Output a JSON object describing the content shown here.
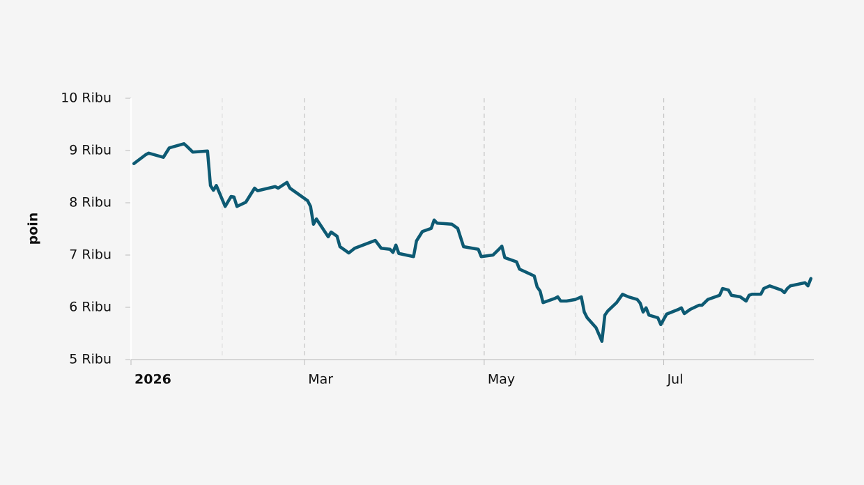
{
  "chart_data": {
    "type": "line",
    "y_label": "poin",
    "color": "#0d5a73",
    "x": [
      "2026-01-02",
      "2026-01-06",
      "2026-01-07",
      "2026-01-12",
      "2026-01-14",
      "2026-01-19",
      "2026-01-20",
      "2026-01-22",
      "2026-01-27",
      "2026-01-28",
      "2026-01-29",
      "2026-01-30",
      "2026-02-02",
      "2026-02-04",
      "2026-02-05",
      "2026-02-06",
      "2026-02-09",
      "2026-02-12",
      "2026-02-13",
      "2026-02-19",
      "2026-02-20",
      "2026-02-23",
      "2026-02-24",
      "2026-02-26",
      "2026-03-02",
      "2026-03-03",
      "2026-03-04",
      "2026-03-05",
      "2026-03-09",
      "2026-03-10",
      "2026-03-12",
      "2026-03-13",
      "2026-03-16",
      "2026-03-18",
      "2026-03-25",
      "2026-03-27",
      "2026-03-30",
      "2026-03-31",
      "2026-04-01",
      "2026-04-02",
      "2026-04-07",
      "2026-04-08",
      "2026-04-10",
      "2026-04-13",
      "2026-04-14",
      "2026-04-15",
      "2026-04-20",
      "2026-04-22",
      "2026-04-24",
      "2026-04-27",
      "2026-04-29",
      "2026-04-30",
      "2026-05-04",
      "2026-05-06",
      "2026-05-07",
      "2026-05-08",
      "2026-05-12",
      "2026-05-13",
      "2026-05-18",
      "2026-05-19",
      "2026-05-20",
      "2026-05-21",
      "2026-05-25",
      "2026-05-26",
      "2026-05-27",
      "2026-05-29",
      "2026-06-01",
      "2026-06-03",
      "2026-06-04",
      "2026-06-05",
      "2026-06-08",
      "2026-06-10",
      "2026-06-11",
      "2026-06-12",
      "2026-06-15",
      "2026-06-17",
      "2026-06-19",
      "2026-06-22",
      "2026-06-23",
      "2026-06-24",
      "2026-06-25",
      "2026-06-26",
      "2026-06-29",
      "2026-06-30",
      "2026-07-02",
      "2026-07-06",
      "2026-07-07",
      "2026-07-08",
      "2026-07-10",
      "2026-07-13",
      "2026-07-14",
      "2026-07-16",
      "2026-07-20",
      "2026-07-21",
      "2026-07-23",
      "2026-07-24",
      "2026-07-27",
      "2026-07-29",
      "2026-07-30",
      "2026-07-31",
      "2026-08-03",
      "2026-08-04",
      "2026-08-06",
      "2026-08-07",
      "2026-08-10",
      "2026-08-11",
      "2026-08-12",
      "2026-08-13",
      "2026-08-18",
      "2026-08-19",
      "2026-08-20"
    ],
    "values": [
      8750,
      8920,
      8950,
      8870,
      9050,
      9130,
      9080,
      8970,
      8990,
      8330,
      8240,
      8330,
      7930,
      8120,
      8110,
      7930,
      8010,
      8280,
      8230,
      8310,
      8280,
      8390,
      8280,
      8200,
      8040,
      7930,
      7590,
      7690,
      7350,
      7440,
      7360,
      7160,
      7040,
      7130,
      7280,
      7130,
      7110,
      7050,
      7190,
      7030,
      6970,
      7270,
      7450,
      7510,
      7670,
      7610,
      7590,
      7510,
      7160,
      7130,
      7110,
      6970,
      7000,
      7110,
      7170,
      6950,
      6870,
      6730,
      6600,
      6390,
      6310,
      6090,
      6170,
      6200,
      6120,
      6120,
      6150,
      6200,
      5910,
      5800,
      5610,
      5350,
      5850,
      5930,
      6090,
      6250,
      6200,
      6150,
      6080,
      5910,
      5990,
      5850,
      5800,
      5670,
      5870,
      5960,
      5990,
      5880,
      5960,
      6040,
      6040,
      6150,
      6230,
      6360,
      6330,
      6230,
      6200,
      6120,
      6230,
      6250,
      6250,
      6360,
      6410,
      6390,
      6330,
      6280,
      6360,
      6410,
      6470,
      6410,
      6550
    ],
    "xlim": [
      "2026-01-01",
      "2026-08-21"
    ],
    "xticks": [
      {
        "value": "2026-01-01",
        "label": "2026"
      },
      {
        "value": "2026-03-01",
        "label": "Mar"
      },
      {
        "value": "2026-05-01",
        "label": "May"
      },
      {
        "value": "2026-07-01",
        "label": "Jul"
      }
    ],
    "xminor": [
      "2026-02-01",
      "2026-04-01",
      "2026-06-01",
      "2026-08-01"
    ],
    "ylim": [
      5000,
      10000
    ],
    "yticks": [
      {
        "value": 5000,
        "label": "5 Ribu"
      },
      {
        "value": 6000,
        "label": "6 Ribu"
      },
      {
        "value": 7000,
        "label": "7 Ribu"
      },
      {
        "value": 8000,
        "label": "8 Ribu"
      },
      {
        "value": 9000,
        "label": "9 Ribu"
      },
      {
        "value": 10000,
        "label": "10 Ribu"
      }
    ]
  }
}
